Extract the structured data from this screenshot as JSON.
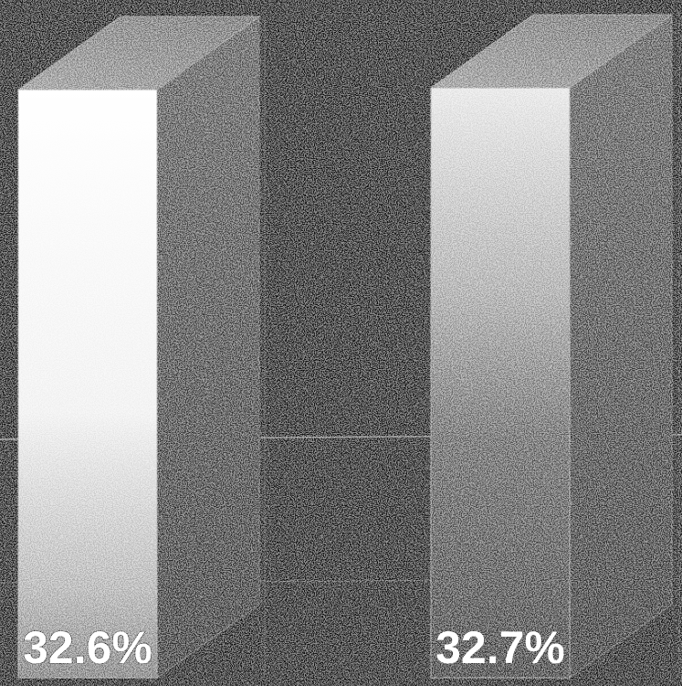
{
  "chart_data": {
    "type": "bar",
    "style": "3d",
    "categories": [
      "",
      ""
    ],
    "values": [
      32.6,
      32.7
    ],
    "value_labels": [
      "32.6%",
      "32.7%"
    ],
    "unit": "%",
    "title": "",
    "xlabel": "",
    "ylabel": "",
    "legend": "none",
    "grid": true,
    "colors": {
      "background": "#0b0b0b",
      "bar_front_top": "#ffffff",
      "bar_front_bottom": "#7a7a7a",
      "bar_side": "#3a3a3a",
      "bar_top": "#6e6e6e",
      "gridline": "#bdbdbd",
      "label": "#ffffff"
    }
  }
}
